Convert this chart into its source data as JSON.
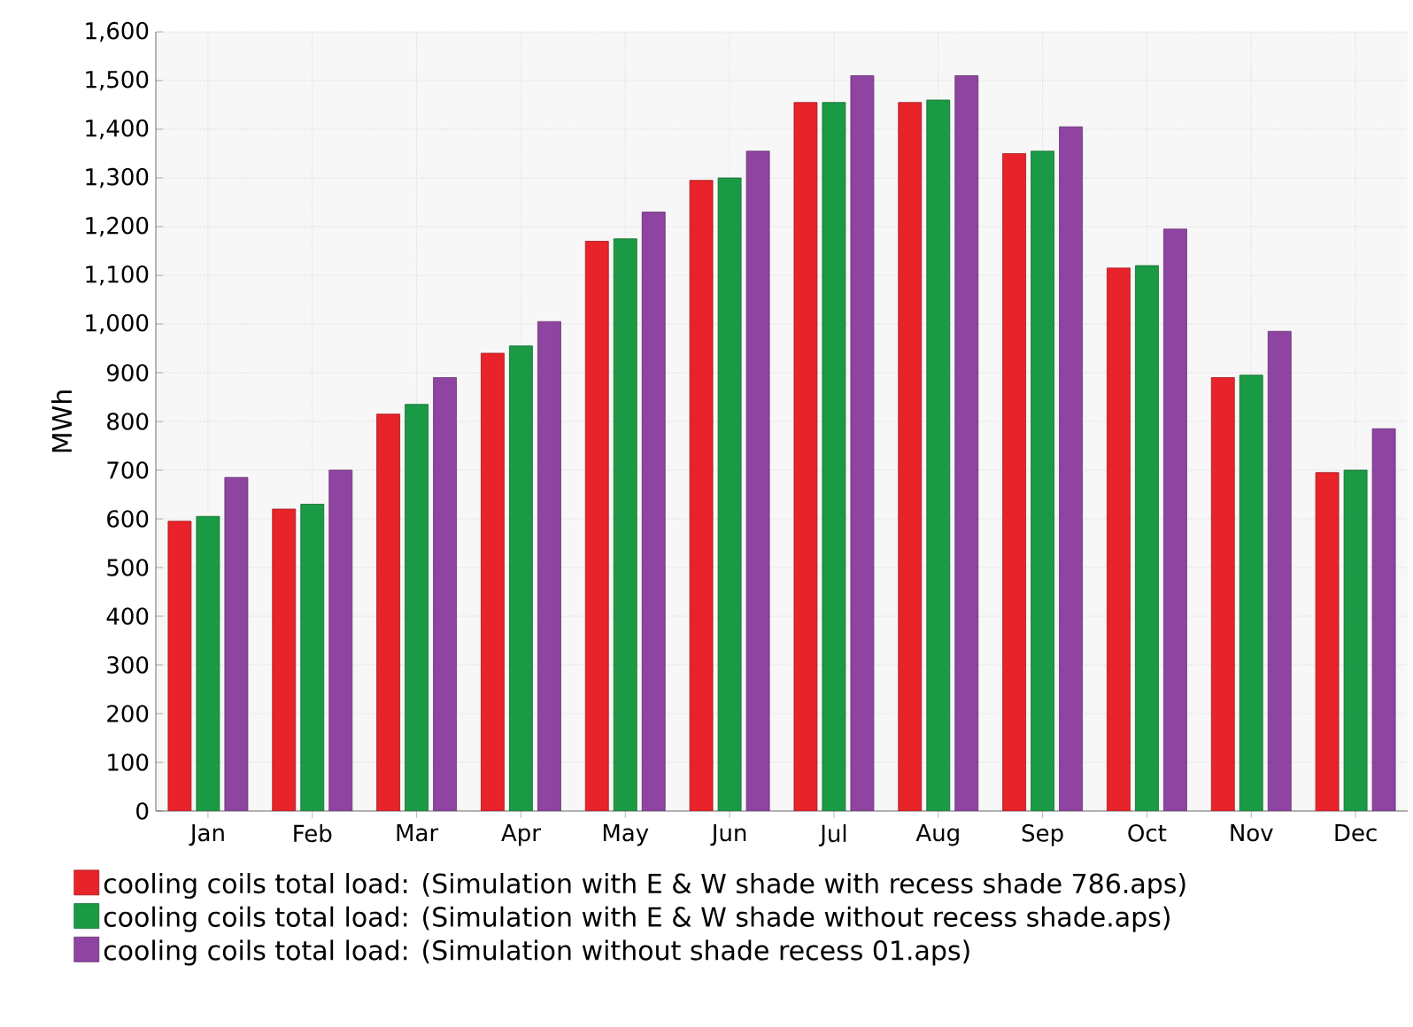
{
  "chart_data": {
    "type": "bar",
    "ylabel": "MWh",
    "categories": [
      "Jan",
      "Feb",
      "Mar",
      "Apr",
      "May",
      "Jun",
      "Jul",
      "Aug",
      "Sep",
      "Oct",
      "Nov",
      "Dec"
    ],
    "series": [
      {
        "name": "cooling coils total load: (Simulation with E & W shade with recess shade 786.aps)",
        "color": "#e8232a",
        "values": [
          595,
          620,
          815,
          940,
          1170,
          1295,
          1455,
          1455,
          1350,
          1115,
          890,
          695
        ]
      },
      {
        "name": "cooling coils total load: (Simulation with E & W shade without recess shade.aps)",
        "color": "#1a9a44",
        "values": [
          605,
          630,
          835,
          955,
          1175,
          1300,
          1455,
          1460,
          1355,
          1120,
          895,
          700
        ]
      },
      {
        "name": "cooling coils total load: (Simulation without shade recess 01.aps)",
        "color": "#8e44a0",
        "values": [
          685,
          700,
          890,
          1005,
          1230,
          1355,
          1510,
          1510,
          1405,
          1195,
          985,
          785
        ]
      }
    ],
    "ylim": [
      0,
      1600
    ],
    "yticks": [
      {
        "value": 0,
        "label": "0"
      },
      {
        "value": 100,
        "label": "100"
      },
      {
        "value": 200,
        "label": "200"
      },
      {
        "value": 300,
        "label": "300"
      },
      {
        "value": 400,
        "label": "400"
      },
      {
        "value": 500,
        "label": "500"
      },
      {
        "value": 600,
        "label": "600"
      },
      {
        "value": 700,
        "label": "700"
      },
      {
        "value": 800,
        "label": "800"
      },
      {
        "value": 900,
        "label": "900"
      },
      {
        "value": 1000,
        "label": "1,000"
      },
      {
        "value": 1100,
        "label": "1,100"
      },
      {
        "value": 1200,
        "label": "1,200"
      },
      {
        "value": 1300,
        "label": "1,300"
      },
      {
        "value": 1400,
        "label": "1,400"
      },
      {
        "value": 1500,
        "label": "1,500"
      },
      {
        "value": 1600,
        "label": "1,600"
      }
    ],
    "grid": true,
    "legend": "bottom"
  }
}
